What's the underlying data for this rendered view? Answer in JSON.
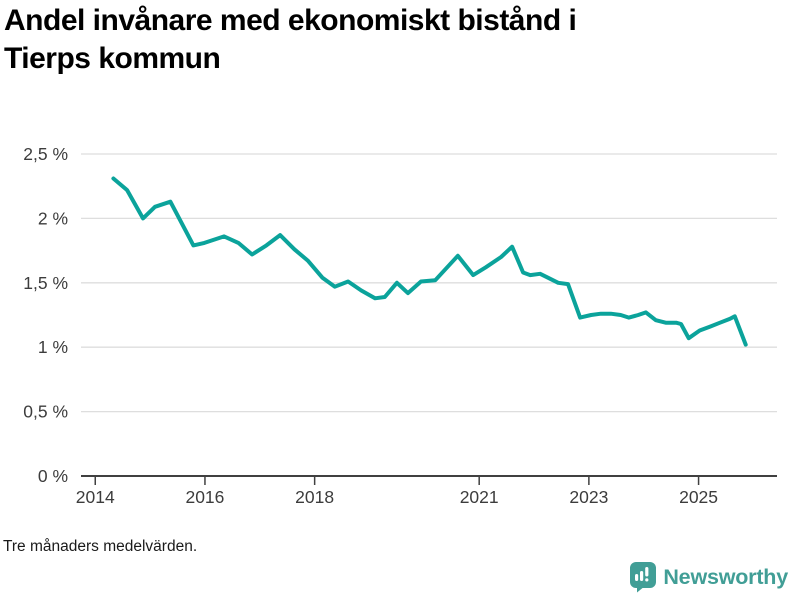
{
  "header": {
    "title": "Andel invånare med ekonomiskt bistånd i Tierps kommun",
    "title_lines": [
      "Andel invånare med ekonomiskt bistånd i",
      "Tierps kommun"
    ]
  },
  "footer": {
    "note": "Tre månaders medelvärden.",
    "brand": "Newsworthy",
    "brand_icon": "newsworthy-speech-bubble-bar-chart-icon"
  },
  "colors": {
    "line": "#0BA39B",
    "grid": "#DEDEDE",
    "axis": "#404040",
    "tick_text": "#3C3C3C",
    "brand": "#419E96"
  },
  "chart_data": {
    "type": "line",
    "title": "Andel invånare med ekonomiskt bistånd i Tierps kommun",
    "note": "Tre månaders medelvärden.",
    "unit": "%",
    "decimal_style": "comma",
    "grid": true,
    "legend": "none",
    "x_domain": [
      2013.74,
      2026.43
    ],
    "ylim": [
      0,
      2.5
    ],
    "y_ticks": [
      {
        "value": 0,
        "label": "0 %"
      },
      {
        "value": 0.5,
        "label": "0,5 %"
      },
      {
        "value": 1,
        "label": "1 %"
      },
      {
        "value": 1.5,
        "label": "1,5 %"
      },
      {
        "value": 2,
        "label": "2 %"
      },
      {
        "value": 2.5,
        "label": "2,5 %"
      }
    ],
    "x_ticks": [
      {
        "value": 2014,
        "label": "2014"
      },
      {
        "value": 2016,
        "label": "2016"
      },
      {
        "value": 2018,
        "label": "2018"
      },
      {
        "value": 2021,
        "label": "2021"
      },
      {
        "value": 2023,
        "label": "2023"
      },
      {
        "value": 2025,
        "label": "2025"
      }
    ],
    "series": [
      {
        "name": "Andel invånare med ekonomiskt bistånd",
        "color": "#0BA39B",
        "points": [
          [
            2014.33,
            2.31
          ],
          [
            2014.58,
            2.22
          ],
          [
            2014.87,
            2.0
          ],
          [
            2015.09,
            2.09
          ],
          [
            2015.37,
            2.13
          ],
          [
            2015.79,
            1.79
          ],
          [
            2015.99,
            1.81
          ],
          [
            2016.35,
            1.86
          ],
          [
            2016.61,
            1.81
          ],
          [
            2016.86,
            1.72
          ],
          [
            2017.12,
            1.79
          ],
          [
            2017.37,
            1.87
          ],
          [
            2017.63,
            1.76
          ],
          [
            2017.88,
            1.67
          ],
          [
            2018.14,
            1.54
          ],
          [
            2018.37,
            1.47
          ],
          [
            2018.61,
            1.51
          ],
          [
            2018.85,
            1.44
          ],
          [
            2019.1,
            1.38
          ],
          [
            2019.28,
            1.39
          ],
          [
            2019.5,
            1.5
          ],
          [
            2019.7,
            1.42
          ],
          [
            2019.94,
            1.51
          ],
          [
            2020.2,
            1.52
          ],
          [
            2020.61,
            1.71
          ],
          [
            2020.89,
            1.56
          ],
          [
            2021.12,
            1.62
          ],
          [
            2021.4,
            1.7
          ],
          [
            2021.6,
            1.78
          ],
          [
            2021.8,
            1.58
          ],
          [
            2021.93,
            1.56
          ],
          [
            2022.11,
            1.57
          ],
          [
            2022.25,
            1.54
          ],
          [
            2022.44,
            1.5
          ],
          [
            2022.62,
            1.49
          ],
          [
            2022.84,
            1.23
          ],
          [
            2023.04,
            1.25
          ],
          [
            2023.22,
            1.26
          ],
          [
            2023.4,
            1.26
          ],
          [
            2023.58,
            1.25
          ],
          [
            2023.73,
            1.23
          ],
          [
            2023.9,
            1.25
          ],
          [
            2024.04,
            1.27
          ],
          [
            2024.22,
            1.21
          ],
          [
            2024.4,
            1.19
          ],
          [
            2024.59,
            1.19
          ],
          [
            2024.68,
            1.18
          ],
          [
            2024.82,
            1.07
          ],
          [
            2025.02,
            1.13
          ],
          [
            2025.21,
            1.16
          ],
          [
            2025.39,
            1.19
          ],
          [
            2025.57,
            1.22
          ],
          [
            2025.66,
            1.24
          ],
          [
            2025.86,
            1.02
          ]
        ]
      }
    ]
  }
}
